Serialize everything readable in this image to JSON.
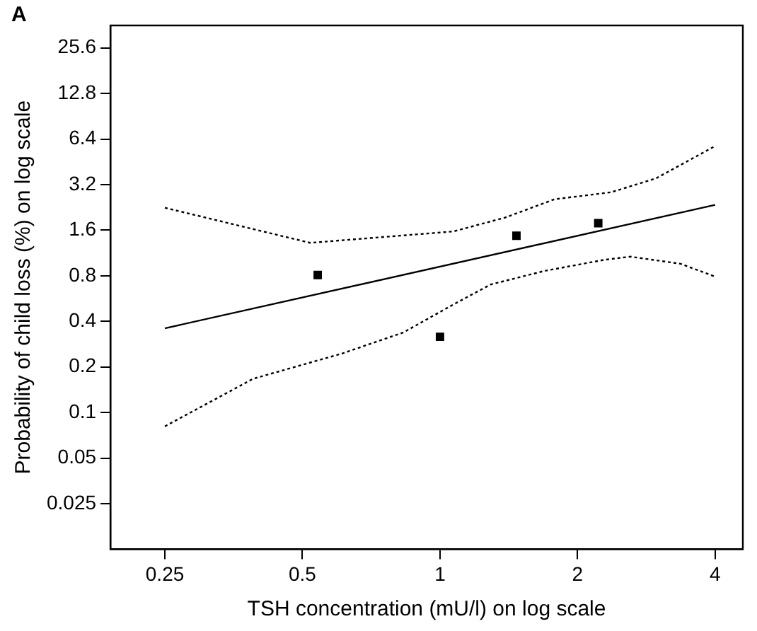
{
  "chart_data": {
    "type": "scatter",
    "title": "A",
    "xlabel": "TSH concentration (mU/l) on log scale",
    "ylabel": "Probability of child loss (%) on log scale",
    "log": "xy",
    "grid": false,
    "legend": false,
    "xlim": [
      0.19,
      4.6
    ],
    "ylim": [
      0.0125,
      36
    ],
    "xticks": [
      0.25,
      0.5,
      1,
      2,
      4
    ],
    "yticks": [
      0.025,
      0.05,
      0.1,
      0.2,
      0.4,
      0.8,
      1.6,
      3.2,
      6.4,
      12.8,
      25.6
    ],
    "series": [
      {
        "color": "#000000",
        "marker": "square",
        "x": [
          0.54,
          1.0,
          1.47,
          2.22
        ],
        "values": [
          0.81,
          0.316,
          1.47,
          1.78
        ]
      },
      {
        "type": "line",
        "color": "#000000",
        "marker": "none",
        "line_style": "solid",
        "x": [
          0.25,
          4.0
        ],
        "values": [
          0.36,
          2.35
        ]
      },
      {
        "type": "line",
        "color": "#000000",
        "marker": "none",
        "line_style": "dotted",
        "x": [
          0.25,
          0.52,
          1.07,
          1.39,
          1.78,
          2.37,
          2.97,
          4.0
        ],
        "values": [
          2.25,
          1.32,
          1.57,
          1.94,
          2.56,
          2.85,
          3.52,
          5.75
        ]
      },
      {
        "type": "line",
        "color": "#000000",
        "marker": "none",
        "line_style": "dotted",
        "x": [
          0.25,
          0.39,
          0.61,
          0.83,
          1.07,
          1.29,
          1.69,
          2.29,
          2.61,
          3.36,
          4.0
        ],
        "values": [
          0.081,
          0.167,
          0.245,
          0.337,
          0.517,
          0.7,
          0.86,
          1.02,
          1.07,
          0.96,
          0.79
        ]
      }
    ]
  }
}
